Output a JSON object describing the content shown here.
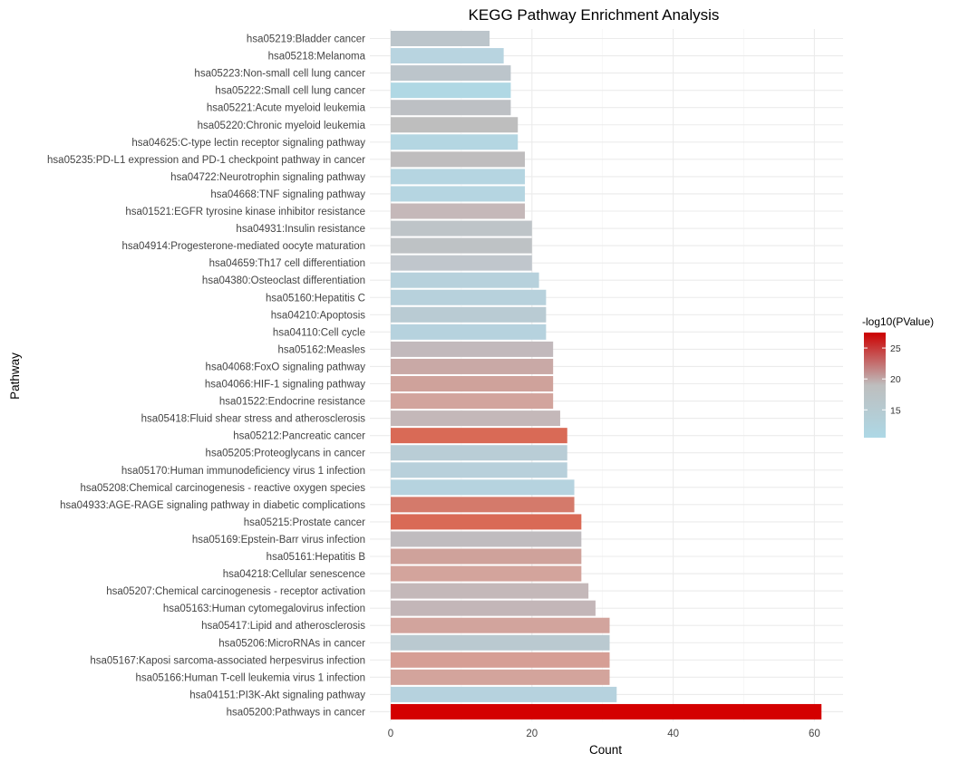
{
  "chart_data": {
    "type": "bar",
    "orientation": "horizontal",
    "title": "KEGG Pathway Enrichment Analysis",
    "xlabel": "Count",
    "ylabel": "Pathway",
    "xlim": [
      0,
      63
    ],
    "xticks": [
      0,
      20,
      40,
      60
    ],
    "grid": true,
    "legend": {
      "title": "-log10(PValue)",
      "placement": "right",
      "range": [
        10.5,
        27.5
      ],
      "ticks": [
        15,
        20,
        25
      ],
      "low_color": "#add8e6",
      "mid_color": "#bebebe",
      "high_color": "#cc0000"
    },
    "categories": [
      "hsa05219:Bladder cancer",
      "hsa05218:Melanoma",
      "hsa05223:Non-small cell lung cancer",
      "hsa05222:Small cell lung cancer",
      "hsa05221:Acute myeloid leukemia",
      "hsa05220:Chronic myeloid leukemia",
      "hsa04625:C-type lectin receptor signaling pathway",
      "hsa05235:PD-L1 expression and PD-1 checkpoint pathway in cancer",
      "hsa04722:Neurotrophin signaling pathway",
      "hsa04668:TNF signaling pathway",
      "hsa01521:EGFR tyrosine kinase inhibitor resistance",
      "hsa04931:Insulin resistance",
      "hsa04914:Progesterone-mediated oocyte maturation",
      "hsa04659:Th17 cell differentiation",
      "hsa04380:Osteoclast differentiation",
      "hsa05160:Hepatitis C",
      "hsa04210:Apoptosis",
      "hsa04110:Cell cycle",
      "hsa05162:Measles",
      "hsa04068:FoxO signaling pathway",
      "hsa04066:HIF-1 signaling pathway",
      "hsa01522:Endocrine resistance",
      "hsa05418:Fluid shear stress and atherosclerosis",
      "hsa05212:Pancreatic cancer",
      "hsa05205:Proteoglycans in cancer",
      "hsa05170:Human immunodeficiency virus 1 infection",
      "hsa05208:Chemical carcinogenesis - reactive oxygen species",
      "hsa04933:AGE-RAGE signaling pathway in diabetic complications",
      "hsa05215:Prostate cancer",
      "hsa05169:Epstein-Barr virus infection",
      "hsa05161:Hepatitis B",
      "hsa04218:Cellular senescence",
      "hsa05207:Chemical carcinogenesis - receptor activation",
      "hsa05163:Human cytomegalovirus infection",
      "hsa05417:Lipid and atherosclerosis",
      "hsa05206:MicroRNAs in cancer",
      "hsa05167:Kaposi sarcoma-associated herpesvirus infection",
      "hsa05166:Human T-cell leukemia virus 1 infection",
      "hsa04151:PI3K-Akt signaling pathway",
      "hsa05200:Pathways in cancer"
    ],
    "values": [
      14,
      16,
      17,
      17,
      17,
      18,
      18,
      19,
      19,
      19,
      19,
      20,
      20,
      20,
      21,
      22,
      22,
      22,
      23,
      23,
      23,
      23,
      24,
      25,
      25,
      25,
      26,
      26,
      27,
      27,
      27,
      27,
      28,
      29,
      31,
      31,
      31,
      31,
      32,
      61
    ],
    "colors": [
      "#bcc5cb",
      "#b8d4e0",
      "#bcc5cb",
      "#b0d8e4",
      "#bdc0c4",
      "#bebebe",
      "#b4d6e2",
      "#bfbdbe",
      "#b5d5e1",
      "#b5d5e1",
      "#c5b8b9",
      "#bec4c8",
      "#bec2c5",
      "#c0c6cc",
      "#b7d1dc",
      "#b7d1dc",
      "#b9cbd3",
      "#b6d2de",
      "#c2b9bc",
      "#c9a9a6",
      "#cfa29b",
      "#d2a49d",
      "#c4b8b9",
      "#d96a56",
      "#b9cdd6",
      "#b8d0db",
      "#b6d3df",
      "#d47a6b",
      "#d96a56",
      "#c0bcbf",
      "#cfa29b",
      "#d3a49c",
      "#c4b8b9",
      "#c3b6b8",
      "#d2a49d",
      "#bac9d0",
      "#d69e95",
      "#d3a49c",
      "#b6d2de",
      "#d40000"
    ]
  }
}
